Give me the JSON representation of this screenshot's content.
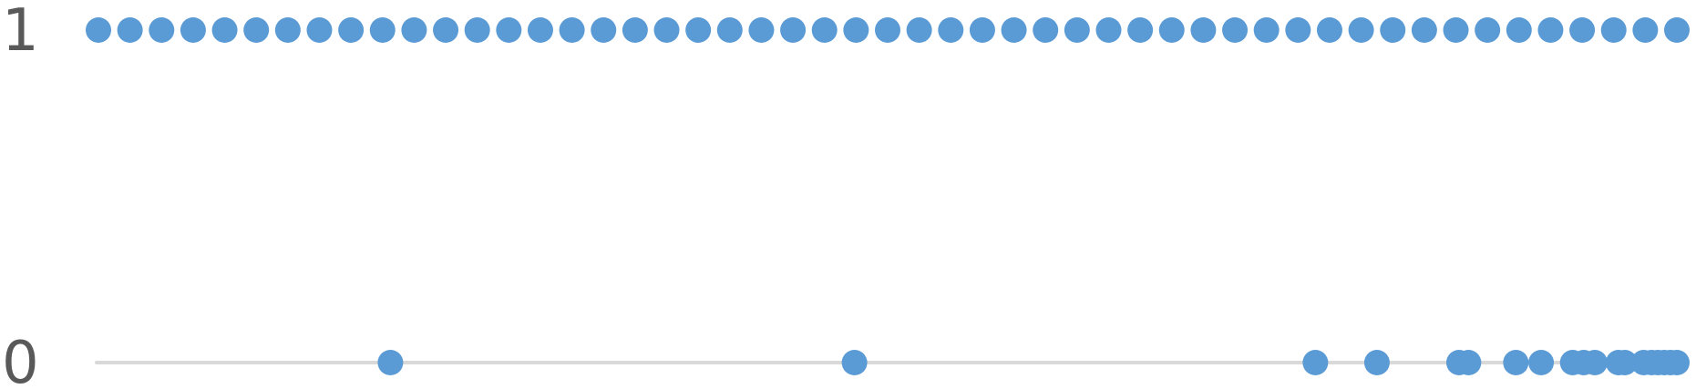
{
  "chart_data": {
    "type": "scatter",
    "title": "",
    "xlabel": "",
    "ylabel": "",
    "y_ticks": [
      "1",
      "0"
    ],
    "ylim": [
      0,
      1
    ],
    "xlim": [
      0,
      1
    ],
    "grid": false,
    "legend": "none",
    "colors": {
      "points": "#5b9bd5",
      "baseline": "#d9d9d9",
      "tick_text": "#595959"
    },
    "series": [
      {
        "points": [
          {
            "x": 0.0,
            "y": 1
          },
          {
            "x": 0.02,
            "y": 1
          },
          {
            "x": 0.04,
            "y": 1
          },
          {
            "x": 0.06,
            "y": 1
          },
          {
            "x": 0.08,
            "y": 1
          },
          {
            "x": 0.1,
            "y": 1
          },
          {
            "x": 0.12,
            "y": 1
          },
          {
            "x": 0.14,
            "y": 1
          },
          {
            "x": 0.16,
            "y": 1
          },
          {
            "x": 0.18,
            "y": 1
          },
          {
            "x": 0.2,
            "y": 1
          },
          {
            "x": 0.22,
            "y": 1
          },
          {
            "x": 0.24,
            "y": 1
          },
          {
            "x": 0.26,
            "y": 1
          },
          {
            "x": 0.28,
            "y": 1
          },
          {
            "x": 0.3,
            "y": 1
          },
          {
            "x": 0.32,
            "y": 1
          },
          {
            "x": 0.34,
            "y": 1
          },
          {
            "x": 0.36,
            "y": 1
          },
          {
            "x": 0.38,
            "y": 1
          },
          {
            "x": 0.4,
            "y": 1
          },
          {
            "x": 0.42,
            "y": 1
          },
          {
            "x": 0.44,
            "y": 1
          },
          {
            "x": 0.46,
            "y": 1
          },
          {
            "x": 0.48,
            "y": 1
          },
          {
            "x": 0.5,
            "y": 1
          },
          {
            "x": 0.52,
            "y": 1
          },
          {
            "x": 0.54,
            "y": 1
          },
          {
            "x": 0.56,
            "y": 1
          },
          {
            "x": 0.58,
            "y": 1
          },
          {
            "x": 0.6,
            "y": 1
          },
          {
            "x": 0.62,
            "y": 1
          },
          {
            "x": 0.64,
            "y": 1
          },
          {
            "x": 0.66,
            "y": 1
          },
          {
            "x": 0.68,
            "y": 1
          },
          {
            "x": 0.7,
            "y": 1
          },
          {
            "x": 0.72,
            "y": 1
          },
          {
            "x": 0.74,
            "y": 1
          },
          {
            "x": 0.76,
            "y": 1
          },
          {
            "x": 0.78,
            "y": 1
          },
          {
            "x": 0.8,
            "y": 1
          },
          {
            "x": 0.82,
            "y": 1
          },
          {
            "x": 0.84,
            "y": 1
          },
          {
            "x": 0.86,
            "y": 1
          },
          {
            "x": 0.88,
            "y": 1
          },
          {
            "x": 0.9,
            "y": 1
          },
          {
            "x": 0.92,
            "y": 1
          },
          {
            "x": 0.94,
            "y": 1
          },
          {
            "x": 0.96,
            "y": 1
          },
          {
            "x": 0.98,
            "y": 1
          },
          {
            "x": 1.0,
            "y": 1
          },
          {
            "x": 0.185,
            "y": 0
          },
          {
            "x": 0.479,
            "y": 0
          },
          {
            "x": 0.771,
            "y": 0
          },
          {
            "x": 0.81,
            "y": 0
          },
          {
            "x": 0.862,
            "y": 0
          },
          {
            "x": 0.868,
            "y": 0
          },
          {
            "x": 0.898,
            "y": 0
          },
          {
            "x": 0.914,
            "y": 0
          },
          {
            "x": 0.934,
            "y": 0
          },
          {
            "x": 0.941,
            "y": 0
          },
          {
            "x": 0.948,
            "y": 0
          },
          {
            "x": 0.963,
            "y": 0
          },
          {
            "x": 0.967,
            "y": 0
          },
          {
            "x": 0.979,
            "y": 0
          },
          {
            "x": 0.984,
            "y": 0
          },
          {
            "x": 0.988,
            "y": 0
          },
          {
            "x": 0.992,
            "y": 0
          },
          {
            "x": 0.996,
            "y": 0
          },
          {
            "x": 1.0,
            "y": 0
          }
        ]
      }
    ]
  }
}
